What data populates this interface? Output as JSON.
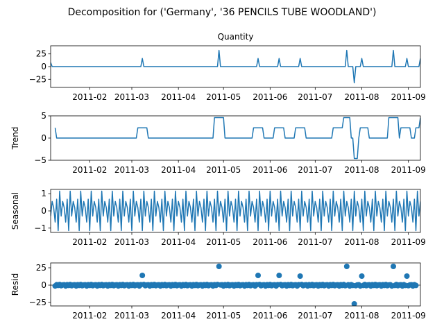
{
  "chart_data": [
    {
      "type": "line",
      "suptitle": "Decomposition for ('Germany', '36 PENCILS TUBE WOODLAND')",
      "title": "Quantity",
      "ylabel": "",
      "ylim": [
        -41,
        41
      ],
      "yticks": [
        -25,
        0,
        25
      ],
      "xlim": [
        "2011-01-06",
        "2011-09-09"
      ],
      "xticks": [
        "2011-02",
        "2011-03",
        "2011-04",
        "2011-05",
        "2011-06",
        "2011-07",
        "2011-08",
        "2011-09"
      ],
      "series": [
        {
          "color": "#1f77b4",
          "points": [
            [
              "2011-01-06",
              8
            ],
            [
              "2011-01-07",
              0
            ],
            [
              "2011-03-07",
              0
            ],
            [
              "2011-03-08",
              16
            ],
            [
              "2011-03-09",
              0
            ],
            [
              "2011-04-27",
              0
            ],
            [
              "2011-04-28",
              32
            ],
            [
              "2011-04-29",
              0
            ],
            [
              "2011-05-23",
              0
            ],
            [
              "2011-05-24",
              16
            ],
            [
              "2011-05-25",
              0
            ],
            [
              "2011-06-06",
              0
            ],
            [
              "2011-06-07",
              16
            ],
            [
              "2011-06-08",
              0
            ],
            [
              "2011-06-20",
              0
            ],
            [
              "2011-06-21",
              16
            ],
            [
              "2011-06-22",
              0
            ],
            [
              "2011-07-21",
              0
            ],
            [
              "2011-07-22",
              32
            ],
            [
              "2011-07-23",
              0
            ],
            [
              "2011-07-26",
              0
            ],
            [
              "2011-07-27",
              -32
            ],
            [
              "2011-07-28",
              0
            ],
            [
              "2011-07-31",
              0
            ],
            [
              "2011-08-01",
              16
            ],
            [
              "2011-08-02",
              0
            ],
            [
              "2011-08-21",
              0
            ],
            [
              "2011-08-22",
              32
            ],
            [
              "2011-08-23",
              0
            ],
            [
              "2011-08-30",
              0
            ],
            [
              "2011-08-31",
              16
            ],
            [
              "2011-09-01",
              0
            ],
            [
              "2011-09-08",
              0
            ],
            [
              "2011-09-09",
              16
            ]
          ]
        }
      ]
    },
    {
      "type": "line",
      "title": "",
      "ylabel": "Trend",
      "ylim": [
        -5,
        5
      ],
      "yticks": [
        -5,
        0,
        5
      ],
      "xlim": [
        "2011-01-06",
        "2011-09-09"
      ],
      "xticks": [
        "2011-02",
        "2011-03",
        "2011-04",
        "2011-05",
        "2011-06",
        "2011-07",
        "2011-08",
        "2011-09"
      ],
      "series": [
        {
          "color": "#1f77b4",
          "points": [
            [
              "2011-01-09",
              2.3
            ],
            [
              "2011-01-10",
              0
            ],
            [
              "2011-03-04",
              0
            ],
            [
              "2011-03-05",
              2.3
            ],
            [
              "2011-03-11",
              2.3
            ],
            [
              "2011-03-12",
              0
            ],
            [
              "2011-04-24",
              0
            ],
            [
              "2011-04-25",
              4.6
            ],
            [
              "2011-05-01",
              4.6
            ],
            [
              "2011-05-02",
              0
            ],
            [
              "2011-05-20",
              0
            ],
            [
              "2011-05-21",
              2.3
            ],
            [
              "2011-05-27",
              2.3
            ],
            [
              "2011-05-28",
              0
            ],
            [
              "2011-06-03",
              0
            ],
            [
              "2011-06-04",
              2.3
            ],
            [
              "2011-06-10",
              2.3
            ],
            [
              "2011-06-11",
              0
            ],
            [
              "2011-06-17",
              0
            ],
            [
              "2011-06-18",
              2.3
            ],
            [
              "2011-06-24",
              2.3
            ],
            [
              "2011-06-25",
              0
            ],
            [
              "2011-07-12",
              0
            ],
            [
              "2011-07-13",
              2.3
            ],
            [
              "2011-07-19",
              2.3
            ],
            [
              "2011-07-20",
              4.6
            ],
            [
              "2011-07-24",
              4.6
            ],
            [
              "2011-07-25",
              0
            ],
            [
              "2011-07-26",
              0
            ],
            [
              "2011-07-27",
              -4.6
            ],
            [
              "2011-07-29",
              -4.6
            ],
            [
              "2011-07-30",
              0
            ],
            [
              "2011-07-31",
              2.3
            ],
            [
              "2011-08-05",
              2.3
            ],
            [
              "2011-08-06",
              0
            ],
            [
              "2011-08-18",
              0
            ],
            [
              "2011-08-19",
              4.6
            ],
            [
              "2011-08-25",
              4.6
            ],
            [
              "2011-08-26",
              0
            ],
            [
              "2011-08-27",
              2.3
            ],
            [
              "2011-09-02",
              2.3
            ],
            [
              "2011-09-03",
              0
            ],
            [
              "2011-09-05",
              0
            ],
            [
              "2011-09-06",
              2.3
            ],
            [
              "2011-09-08",
              2.3
            ],
            [
              "2011-09-09",
              4.6
            ]
          ]
        }
      ]
    },
    {
      "type": "line",
      "title": "",
      "ylabel": "Seasonal",
      "ylim": [
        -1.25,
        1.25
      ],
      "yticks": [
        -1,
        0,
        1
      ],
      "xlim": [
        "2011-01-06",
        "2011-09-09"
      ],
      "xticks": [
        "2011-02",
        "2011-03",
        "2011-04",
        "2011-05",
        "2011-06",
        "2011-07",
        "2011-08",
        "2011-09"
      ],
      "seasonal_pattern": [
        -0.3,
        0.55,
        0.2,
        -0.65,
        0.68,
        -1.15,
        1.15
      ],
      "seasonal_start": "2011-01-06",
      "seasonal_end": "2011-09-09",
      "series": [
        {
          "color": "#1f77b4"
        }
      ]
    },
    {
      "type": "scatter",
      "title": "",
      "ylabel": "Resid",
      "ylim": [
        -30,
        32
      ],
      "yticks": [
        -25,
        0,
        25
      ],
      "xlim": [
        "2011-01-06",
        "2011-09-09"
      ],
      "xticks": [
        "2011-02",
        "2011-03",
        "2011-04",
        "2011-05",
        "2011-06",
        "2011-07",
        "2011-08",
        "2011-09"
      ],
      "baseline": 0,
      "residual_start": "2011-01-09",
      "residual_end": "2011-09-06",
      "residual_step_days": 1,
      "residual_pattern": [
        -1.2,
        0.6,
        -0.4,
        0.9,
        -0.8,
        0.3,
        0.5
      ],
      "outliers": [
        [
          "2011-03-08",
          14
        ],
        [
          "2011-04-28",
          27
        ],
        [
          "2011-05-24",
          14
        ],
        [
          "2011-06-07",
          14
        ],
        [
          "2011-06-21",
          13
        ],
        [
          "2011-07-22",
          27
        ],
        [
          "2011-07-27",
          -27
        ],
        [
          "2011-08-01",
          13
        ],
        [
          "2011-08-22",
          27
        ],
        [
          "2011-08-31",
          13
        ]
      ],
      "series": [
        {
          "color": "#1f77b4"
        }
      ]
    }
  ]
}
